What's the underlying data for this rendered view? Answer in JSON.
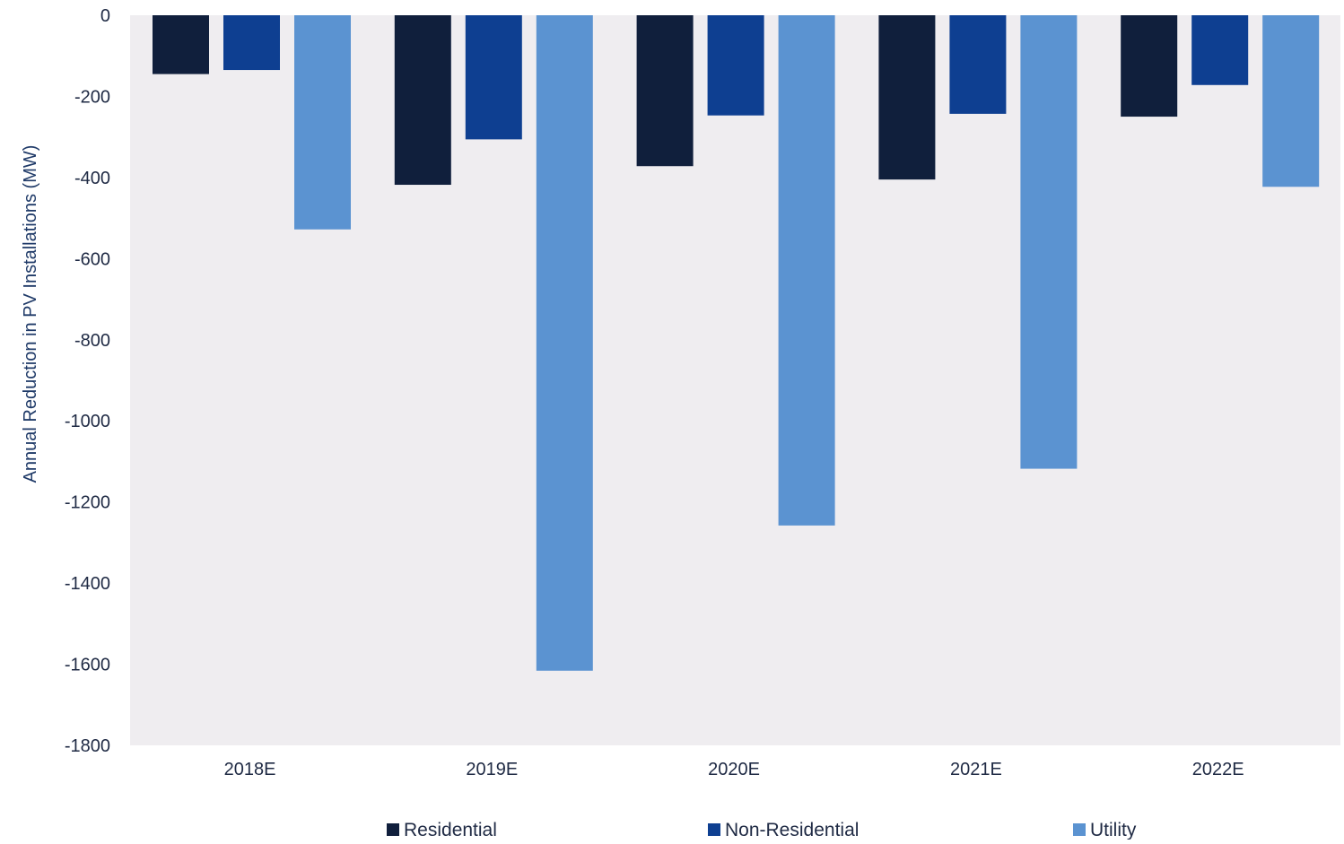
{
  "chart_data": {
    "type": "bar",
    "title": "",
    "xlabel": "",
    "ylabel": "Annual Reduction in PV Installations (MW)",
    "categories": [
      "2018E",
      "2019E",
      "2020E",
      "2021E",
      "2022E"
    ],
    "series": [
      {
        "name": "Residential",
        "color": "#101f3c",
        "values": [
          -145,
          -418,
          -372,
          -405,
          -250
        ]
      },
      {
        "name": "Non-Residential",
        "color": "#0e3f91",
        "values": [
          -135,
          -306,
          -247,
          -243,
          -172
        ]
      },
      {
        "name": "Utility",
        "color": "#5b93d1",
        "values": [
          -528,
          -1616,
          -1258,
          -1118,
          -423
        ]
      }
    ],
    "ylim": [
      -1800,
      0
    ],
    "yticks": [
      0,
      -200,
      -400,
      -600,
      -800,
      -1000,
      -1200,
      -1400,
      -1600,
      -1800
    ],
    "grid": false,
    "plot_background": "#efedf0",
    "legend_position": "bottom"
  }
}
